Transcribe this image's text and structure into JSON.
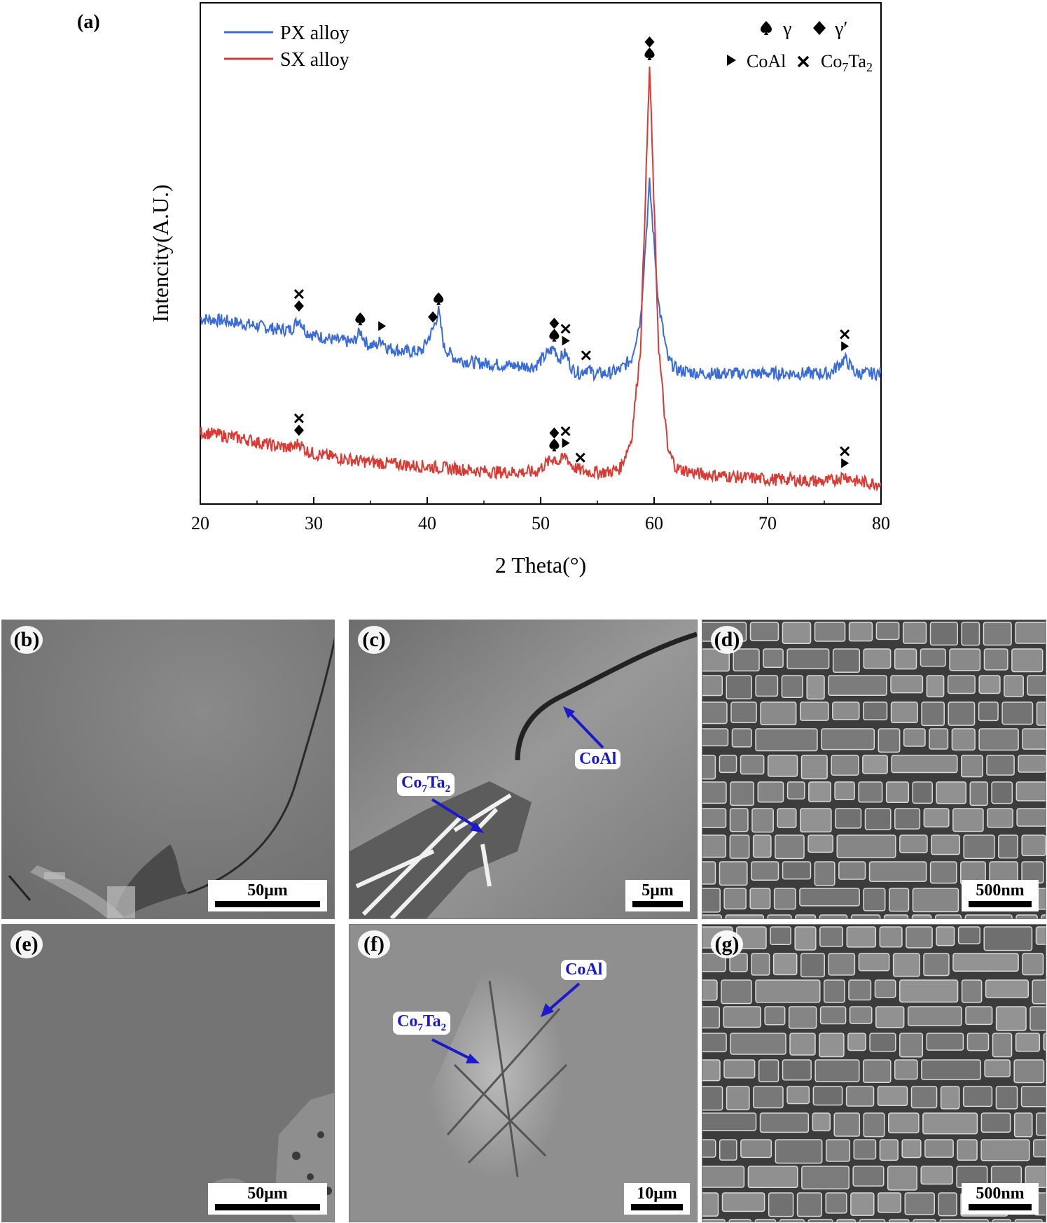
{
  "panel_labels": {
    "a": "(a)",
    "b": "(b)",
    "c": "(c)",
    "d": "(d)",
    "e": "(e)",
    "f": "(f)",
    "g": "(g)"
  },
  "legend": {
    "series_px": "PX alloy",
    "series_sx": "SX alloy"
  },
  "phase_legend": {
    "gamma": "γ",
    "gamma_prime": "γ′",
    "coal": "CoAl",
    "co7ta2": "Co7Ta2"
  },
  "micrographs": {
    "b": {
      "scale": "50μm"
    },
    "c": {
      "scale": "5μm",
      "labels": [
        "CoAl",
        "Co7Ta2"
      ]
    },
    "d": {
      "scale": "500nm"
    },
    "e": {
      "scale": "50μm"
    },
    "f": {
      "scale": "10μm",
      "labels": [
        "CoAl",
        "Co7Ta2"
      ]
    },
    "g": {
      "scale": "500nm"
    }
  },
  "colors": {
    "px": "#3a6bd6",
    "sx": "#d93a34",
    "arrow": "#1a1acc"
  },
  "chart_data": {
    "type": "line",
    "xlabel": "2 Theta(°)",
    "ylabel": "Intencity(A.U.)",
    "xlim": [
      20,
      80
    ],
    "xticks": [
      20,
      30,
      40,
      50,
      60,
      70,
      80
    ],
    "y_ticks_shown": false,
    "series": [
      {
        "name": "PX alloy",
        "color": "#3a6bd6",
        "x": [
          20,
          22,
          24,
          26,
          27,
          28,
          28.7,
          29.3,
          30,
          32,
          33.5,
          34.1,
          34.7,
          35.5,
          36.0,
          36.5,
          38,
          39.5,
          40.5,
          41.0,
          41.5,
          42.5,
          44,
          46,
          48,
          49.5,
          50.8,
          51.2,
          51.6,
          52.2,
          52.8,
          53.5,
          54.0,
          54.7,
          56,
          57,
          58,
          58.8,
          59.6,
          60.4,
          61.2,
          62,
          64,
          66,
          68,
          70,
          72,
          74,
          75.5,
          76.8,
          77.8,
          79,
          80
        ],
        "y": [
          0.58,
          0.575,
          0.565,
          0.555,
          0.55,
          0.55,
          0.58,
          0.545,
          0.535,
          0.52,
          0.515,
          0.545,
          0.51,
          0.505,
          0.525,
          0.5,
          0.49,
          0.49,
          0.55,
          0.6,
          0.5,
          0.47,
          0.46,
          0.455,
          0.45,
          0.45,
          0.49,
          0.5,
          0.47,
          0.485,
          0.44,
          0.43,
          0.445,
          0.43,
          0.43,
          0.44,
          0.47,
          0.58,
          0.95,
          0.62,
          0.47,
          0.44,
          0.43,
          0.43,
          0.43,
          0.43,
          0.43,
          0.43,
          0.43,
          0.47,
          0.43,
          0.43,
          0.43
        ]
      },
      {
        "name": "SX alloy",
        "color": "#d93a34",
        "x": [
          20,
          22,
          24,
          26,
          27,
          28,
          28.7,
          29.3,
          30,
          32,
          34,
          36,
          38,
          40,
          42,
          44,
          46,
          48,
          49.5,
          50.8,
          51.2,
          51.6,
          52.2,
          52.8,
          53.5,
          54.5,
          56,
          57,
          58,
          58.8,
          59.6,
          60.4,
          61.2,
          62,
          64,
          66,
          68,
          70,
          72,
          74,
          75.5,
          76.8,
          77.8,
          79,
          80
        ],
        "y": [
          0.27,
          0.26,
          0.25,
          0.235,
          0.23,
          0.225,
          0.24,
          0.22,
          0.21,
          0.2,
          0.19,
          0.185,
          0.18,
          0.175,
          0.17,
          0.165,
          0.16,
          0.16,
          0.16,
          0.19,
          0.2,
          0.185,
          0.205,
          0.175,
          0.165,
          0.16,
          0.16,
          0.17,
          0.25,
          0.5,
          1.27,
          0.5,
          0.22,
          0.17,
          0.155,
          0.15,
          0.145,
          0.14,
          0.14,
          0.135,
          0.135,
          0.15,
          0.135,
          0.13,
          0.13
        ]
      }
    ],
    "markers": [
      {
        "series": "PX alloy",
        "x": 28.7,
        "symbols": [
          "diamond",
          "cross"
        ]
      },
      {
        "series": "PX alloy",
        "x": 34.1,
        "symbols": [
          "spade"
        ]
      },
      {
        "series": "PX alloy",
        "x": 36.0,
        "symbols": [
          "triangle"
        ]
      },
      {
        "series": "PX alloy",
        "x": 40.5,
        "symbols": [
          "diamond"
        ]
      },
      {
        "series": "PX alloy",
        "x": 41.0,
        "symbols": [
          "spade"
        ]
      },
      {
        "series": "PX alloy",
        "x": 51.2,
        "symbols": [
          "spade",
          "diamond"
        ]
      },
      {
        "series": "PX alloy",
        "x": 52.2,
        "symbols": [
          "triangle",
          "cross"
        ]
      },
      {
        "series": "PX alloy",
        "x": 54.0,
        "symbols": [
          "cross"
        ]
      },
      {
        "series": "PX alloy",
        "x": 76.8,
        "symbols": [
          "triangle",
          "cross"
        ]
      },
      {
        "series": "SX alloy",
        "x": 28.7,
        "symbols": [
          "diamond",
          "cross"
        ]
      },
      {
        "series": "SX alloy",
        "x": 51.2,
        "symbols": [
          "spade",
          "diamond"
        ]
      },
      {
        "series": "SX alloy",
        "x": 52.2,
        "symbols": [
          "triangle",
          "cross"
        ]
      },
      {
        "series": "SX alloy",
        "x": 53.5,
        "symbols": [
          "cross"
        ]
      },
      {
        "series": "SX alloy",
        "x": 59.6,
        "symbols": [
          "spade",
          "diamond"
        ]
      },
      {
        "series": "SX alloy",
        "x": 76.8,
        "symbols": [
          "triangle",
          "cross"
        ]
      }
    ]
  }
}
